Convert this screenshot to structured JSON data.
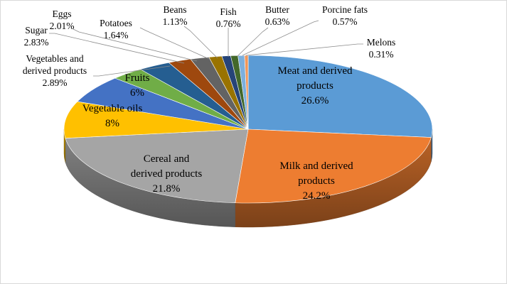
{
  "chart_data": {
    "type": "pie",
    "title": "",
    "slices": [
      {
        "name": "Meat and derived products",
        "lines": [
          "Meat and derived",
          "products"
        ],
        "pct_label": "26.6%",
        "value": 26.6,
        "color": "#5b9bd5",
        "label_mode": "inside"
      },
      {
        "name": "Milk and derived products",
        "lines": [
          "Milk and derived",
          "products"
        ],
        "pct_label": "24.2%",
        "value": 24.2,
        "color": "#ed7d31",
        "label_mode": "inside"
      },
      {
        "name": "Cereal and derived products",
        "lines": [
          "Cereal and",
          "derived products"
        ],
        "pct_label": "21.8%",
        "value": 21.8,
        "color": "#a5a5a5",
        "label_mode": "inside"
      },
      {
        "name": "Vegetable oils",
        "lines": [
          "Vegetable oils"
        ],
        "pct_label": "8%",
        "value": 8,
        "color": "#ffc000",
        "label_mode": "inside"
      },
      {
        "name": "Fruits",
        "lines": [
          "Fruits"
        ],
        "pct_label": "6%",
        "value": 6,
        "color": "#4472c4",
        "label_mode": "inside"
      },
      {
        "name": "Vegetables and derived products",
        "lines": [
          "Vegetables and",
          "derived products"
        ],
        "pct_label": "2.89%",
        "value": 2.89,
        "color": "#70ad47",
        "label_mode": "outside"
      },
      {
        "name": "Sugar",
        "lines": [
          "Sugar"
        ],
        "pct_label": "2.83%",
        "value": 2.83,
        "color": "#255e91",
        "label_mode": "outside"
      },
      {
        "name": "Eggs",
        "lines": [
          "Eggs"
        ],
        "pct_label": "2.01%",
        "value": 2.01,
        "color": "#9e480e",
        "label_mode": "outside"
      },
      {
        "name": "Potatoes",
        "lines": [
          "Potatoes"
        ],
        "pct_label": "1.64%",
        "value": 1.64,
        "color": "#636363",
        "label_mode": "outside"
      },
      {
        "name": "Beans",
        "lines": [
          "Beans"
        ],
        "pct_label": "1.13%",
        "value": 1.13,
        "color": "#997300",
        "label_mode": "outside"
      },
      {
        "name": "Fish",
        "lines": [
          "Fish"
        ],
        "pct_label": "0.76%",
        "value": 0.76,
        "color": "#264478",
        "label_mode": "outside"
      },
      {
        "name": "Butter",
        "lines": [
          "Butter"
        ],
        "pct_label": "0.63%",
        "value": 0.63,
        "color": "#43682b",
        "label_mode": "outside"
      },
      {
        "name": "Porcine fats",
        "lines": [
          "Porcine fats"
        ],
        "pct_label": "0.57%",
        "value": 0.57,
        "color": "#7cafdd",
        "label_mode": "outside"
      },
      {
        "name": "Melons",
        "lines": [
          "Melons"
        ],
        "pct_label": "0.31%",
        "value": 0.31,
        "color": "#f1975a",
        "label_mode": "outside"
      }
    ]
  }
}
